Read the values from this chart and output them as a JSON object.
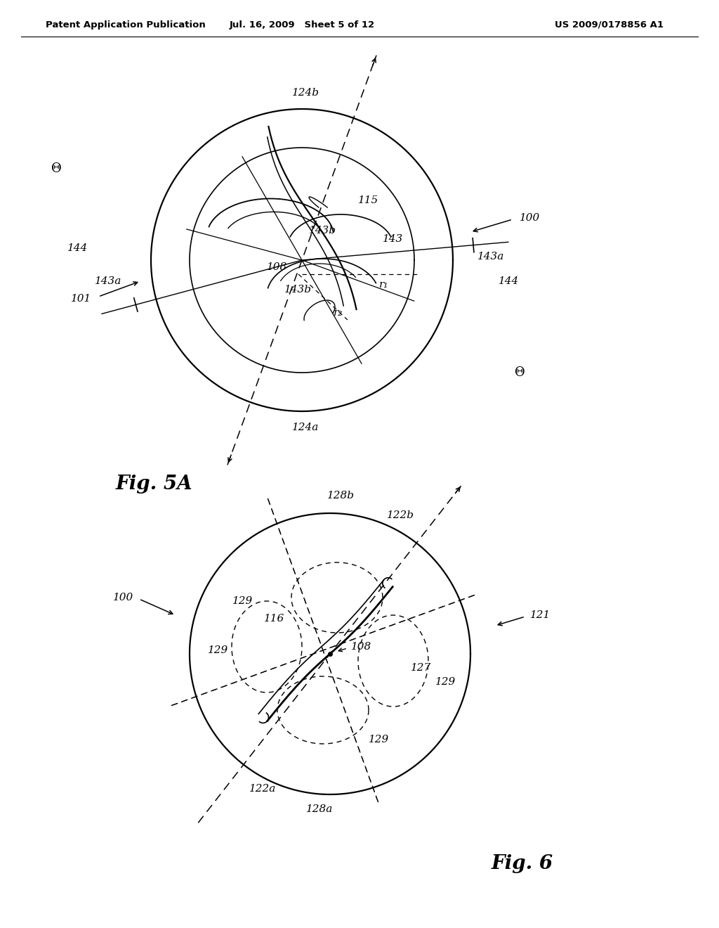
{
  "bg_color": "#ffffff",
  "line_color": "#000000",
  "header_left": "Patent Application Publication",
  "header_mid": "Jul. 16, 2009   Sheet 5 of 12",
  "header_right": "US 2009/0178856 A1"
}
